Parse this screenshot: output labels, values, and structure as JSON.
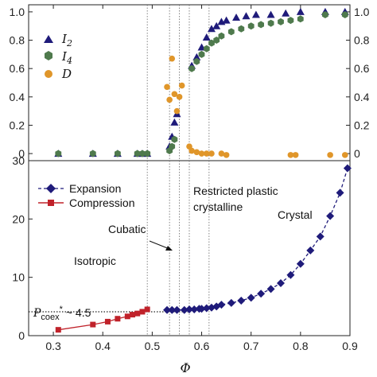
{
  "chart_data": [
    {
      "type": "scatter",
      "panel": "top",
      "xlim": [
        0.25,
        0.9
      ],
      "ylim": [
        -0.05,
        1.05
      ],
      "yticks": [
        "0",
        "0.2",
        "0.4",
        "0.6",
        "0.8",
        "1.0"
      ],
      "right_axis": true,
      "legend_position": "top-left",
      "series": [
        {
          "name": "I",
          "subscript": "2",
          "marker": "triangle",
          "color": "#1f1b7a",
          "points": [
            [
              0.31,
              0.0
            ],
            [
              0.38,
              0.0
            ],
            [
              0.43,
              0.0
            ],
            [
              0.47,
              0.0
            ],
            [
              0.48,
              0.0
            ],
            [
              0.49,
              0.0
            ],
            [
              0.535,
              0.05
            ],
            [
              0.54,
              0.12
            ],
            [
              0.545,
              0.22
            ],
            [
              0.55,
              0.28
            ],
            [
              0.58,
              0.62
            ],
            [
              0.59,
              0.68
            ],
            [
              0.6,
              0.75
            ],
            [
              0.61,
              0.82
            ],
            [
              0.62,
              0.88
            ],
            [
              0.63,
              0.9
            ],
            [
              0.64,
              0.93
            ],
            [
              0.65,
              0.94
            ],
            [
              0.67,
              0.96
            ],
            [
              0.69,
              0.97
            ],
            [
              0.71,
              0.98
            ],
            [
              0.74,
              0.98
            ],
            [
              0.77,
              0.99
            ],
            [
              0.8,
              1.0
            ],
            [
              0.85,
              1.0
            ],
            [
              0.89,
              1.0
            ]
          ]
        },
        {
          "name": "I",
          "subscript": "4",
          "marker": "hexagon",
          "color": "#4f7a4d",
          "points": [
            [
              0.31,
              0.0
            ],
            [
              0.38,
              0.0
            ],
            [
              0.43,
              0.0
            ],
            [
              0.47,
              0.0
            ],
            [
              0.48,
              0.0
            ],
            [
              0.49,
              0.0
            ],
            [
              0.535,
              0.02
            ],
            [
              0.54,
              0.05
            ],
            [
              0.545,
              0.1
            ],
            [
              0.58,
              0.6
            ],
            [
              0.59,
              0.65
            ],
            [
              0.6,
              0.7
            ],
            [
              0.61,
              0.74
            ],
            [
              0.62,
              0.78
            ],
            [
              0.63,
              0.8
            ],
            [
              0.64,
              0.83
            ],
            [
              0.66,
              0.86
            ],
            [
              0.68,
              0.88
            ],
            [
              0.7,
              0.9
            ],
            [
              0.72,
              0.91
            ],
            [
              0.74,
              0.92
            ],
            [
              0.76,
              0.93
            ],
            [
              0.78,
              0.94
            ],
            [
              0.8,
              0.95
            ],
            [
              0.85,
              0.98
            ],
            [
              0.89,
              0.98
            ]
          ]
        },
        {
          "name": "D",
          "subscript": "",
          "marker": "circle",
          "color": "#e0962a",
          "points": [
            [
              0.53,
              0.47
            ],
            [
              0.535,
              0.38
            ],
            [
              0.54,
              0.67
            ],
            [
              0.545,
              0.42
            ],
            [
              0.55,
              0.3
            ],
            [
              0.555,
              0.4
            ],
            [
              0.56,
              0.48
            ],
            [
              0.575,
              0.05
            ],
            [
              0.58,
              0.02
            ],
            [
              0.59,
              0.01
            ],
            [
              0.6,
              0.0
            ],
            [
              0.61,
              0.0
            ],
            [
              0.62,
              0.0
            ],
            [
              0.64,
              0.0
            ],
            [
              0.65,
              -0.01
            ],
            [
              0.78,
              -0.01
            ],
            [
              0.79,
              -0.01
            ],
            [
              0.86,
              -0.01
            ],
            [
              0.89,
              -0.01
            ]
          ]
        }
      ]
    },
    {
      "type": "line",
      "panel": "bottom",
      "xlabel": "Φ",
      "xlim": [
        0.25,
        0.9
      ],
      "ylim": [
        0,
        30
      ],
      "xticks": [
        "0.3",
        "0.4",
        "0.5",
        "0.6",
        "0.7",
        "0.8",
        "0.9"
      ],
      "yticks": [
        "0",
        "10",
        "20",
        "30"
      ],
      "legend_position": "top-left",
      "series": [
        {
          "name": "Expansion",
          "marker": "diamond",
          "style": "dashed",
          "color": "#1f1b7a",
          "points": [
            [
              0.53,
              4.4
            ],
            [
              0.54,
              4.4
            ],
            [
              0.55,
              4.4
            ],
            [
              0.565,
              4.4
            ],
            [
              0.575,
              4.5
            ],
            [
              0.585,
              4.5
            ],
            [
              0.595,
              4.6
            ],
            [
              0.6,
              4.6
            ],
            [
              0.61,
              4.7
            ],
            [
              0.62,
              4.8
            ],
            [
              0.63,
              5.0
            ],
            [
              0.64,
              5.3
            ],
            [
              0.66,
              5.6
            ],
            [
              0.68,
              6.0
            ],
            [
              0.7,
              6.5
            ],
            [
              0.72,
              7.2
            ],
            [
              0.74,
              8.0
            ],
            [
              0.76,
              9.0
            ],
            [
              0.78,
              10.4
            ],
            [
              0.8,
              12.3
            ],
            [
              0.82,
              14.6
            ],
            [
              0.84,
              17.0
            ],
            [
              0.86,
              20.5
            ],
            [
              0.88,
              24.5
            ],
            [
              0.895,
              28.7
            ]
          ]
        },
        {
          "name": "Compression",
          "marker": "square",
          "style": "solid",
          "color": "#c0222a",
          "points": [
            [
              0.31,
              1.0
            ],
            [
              0.38,
              1.9
            ],
            [
              0.41,
              2.4
            ],
            [
              0.43,
              2.9
            ],
            [
              0.45,
              3.3
            ],
            [
              0.46,
              3.6
            ],
            [
              0.47,
              3.8
            ],
            [
              0.48,
              4.1
            ],
            [
              0.49,
              4.5
            ]
          ]
        }
      ],
      "annotations": {
        "isotropic": "Isotropic",
        "cubatic": "Cubatic",
        "restricted_line1": "Restricted plastic",
        "restricted_line2": "crystalline",
        "crystal": "Crystal",
        "pcoex_main": "P",
        "pcoex_sub": "coex",
        "pcoex_sup": "*",
        "pcoex_value": " ~ 4.5"
      },
      "pcoex": 4.5,
      "transition_lines_x": [
        0.49,
        0.535,
        0.555,
        0.575,
        0.615
      ]
    }
  ]
}
